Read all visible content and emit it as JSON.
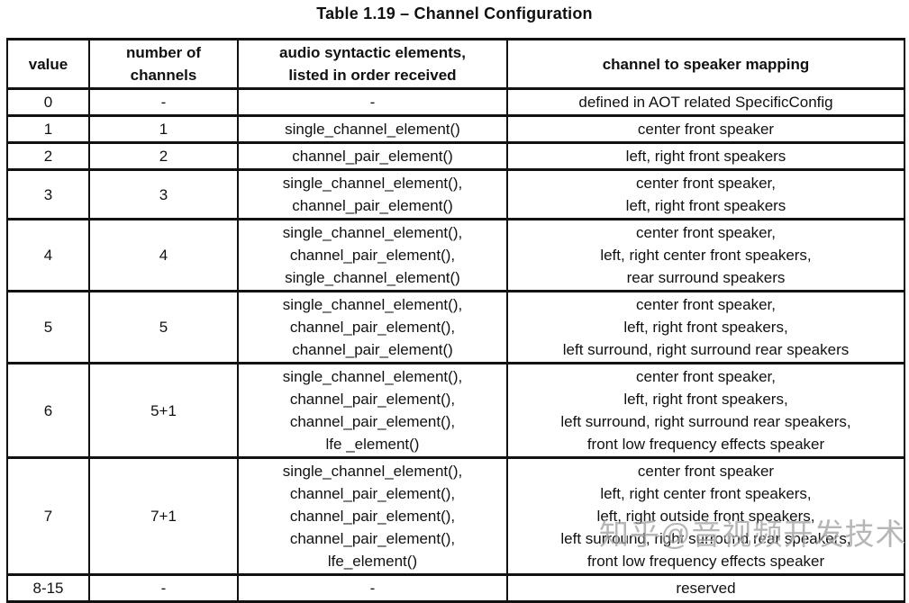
{
  "page": {
    "title": "Table 1.19 – Channel Configuration",
    "watermark": "知乎@音视频开发技术"
  },
  "colors": {
    "background": "#ffffff",
    "text": "#111111",
    "border": "#111111",
    "watermark": "#9b9b9b"
  },
  "table": {
    "columns": [
      {
        "id": "value",
        "label_lines": [
          "value"
        ]
      },
      {
        "id": "channels",
        "label_lines": [
          "number of",
          "channels"
        ]
      },
      {
        "id": "elements",
        "label_lines": [
          "audio syntactic elements,",
          "listed in order received"
        ]
      },
      {
        "id": "mapping",
        "label_lines": [
          "channel to speaker mapping"
        ]
      }
    ],
    "rows": [
      {
        "value": "0",
        "channels": "-",
        "elements": [
          "-"
        ],
        "mapping": [
          "defined in AOT related SpecificConfig"
        ]
      },
      {
        "value": "1",
        "channels": "1",
        "elements": [
          "single_channel_element()"
        ],
        "mapping": [
          "center front speaker"
        ]
      },
      {
        "value": "2",
        "channels": "2",
        "elements": [
          "channel_pair_element()"
        ],
        "mapping": [
          "left, right front speakers"
        ]
      },
      {
        "value": "3",
        "channels": "3",
        "elements": [
          "single_channel_element(),",
          "channel_pair_element()"
        ],
        "mapping": [
          "center front speaker,",
          "left, right front speakers"
        ]
      },
      {
        "value": "4",
        "channels": "4",
        "elements": [
          "single_channel_element(),",
          "channel_pair_element(),",
          "single_channel_element()"
        ],
        "mapping": [
          "center front speaker,",
          "left, right center front speakers,",
          "rear surround speakers"
        ]
      },
      {
        "value": "5",
        "channels": "5",
        "elements": [
          "single_channel_element(),",
          "channel_pair_element(),",
          "channel_pair_element()"
        ],
        "mapping": [
          "center front speaker,",
          "left, right front speakers,",
          "left surround, right surround rear speakers"
        ]
      },
      {
        "value": "6",
        "channels": "5+1",
        "elements": [
          "single_channel_element(),",
          "channel_pair_element(),",
          "channel_pair_element(),",
          "lfe _element()"
        ],
        "mapping": [
          "center front speaker,",
          "left, right front speakers,",
          "left surround, right surround rear speakers,",
          "front low frequency effects speaker"
        ]
      },
      {
        "value": "7",
        "channels": "7+1",
        "elements": [
          "single_channel_element(),",
          "channel_pair_element(),",
          "channel_pair_element(),",
          "channel_pair_element(),",
          "lfe_element()"
        ],
        "mapping": [
          "center front speaker",
          "left, right center front speakers,",
          "left, right outside front speakers,",
          "left surround, right surround rear speakers,",
          "front low frequency effects speaker"
        ]
      },
      {
        "value": "8-15",
        "channels": "-",
        "elements": [
          "-"
        ],
        "mapping": [
          "reserved"
        ]
      }
    ]
  }
}
